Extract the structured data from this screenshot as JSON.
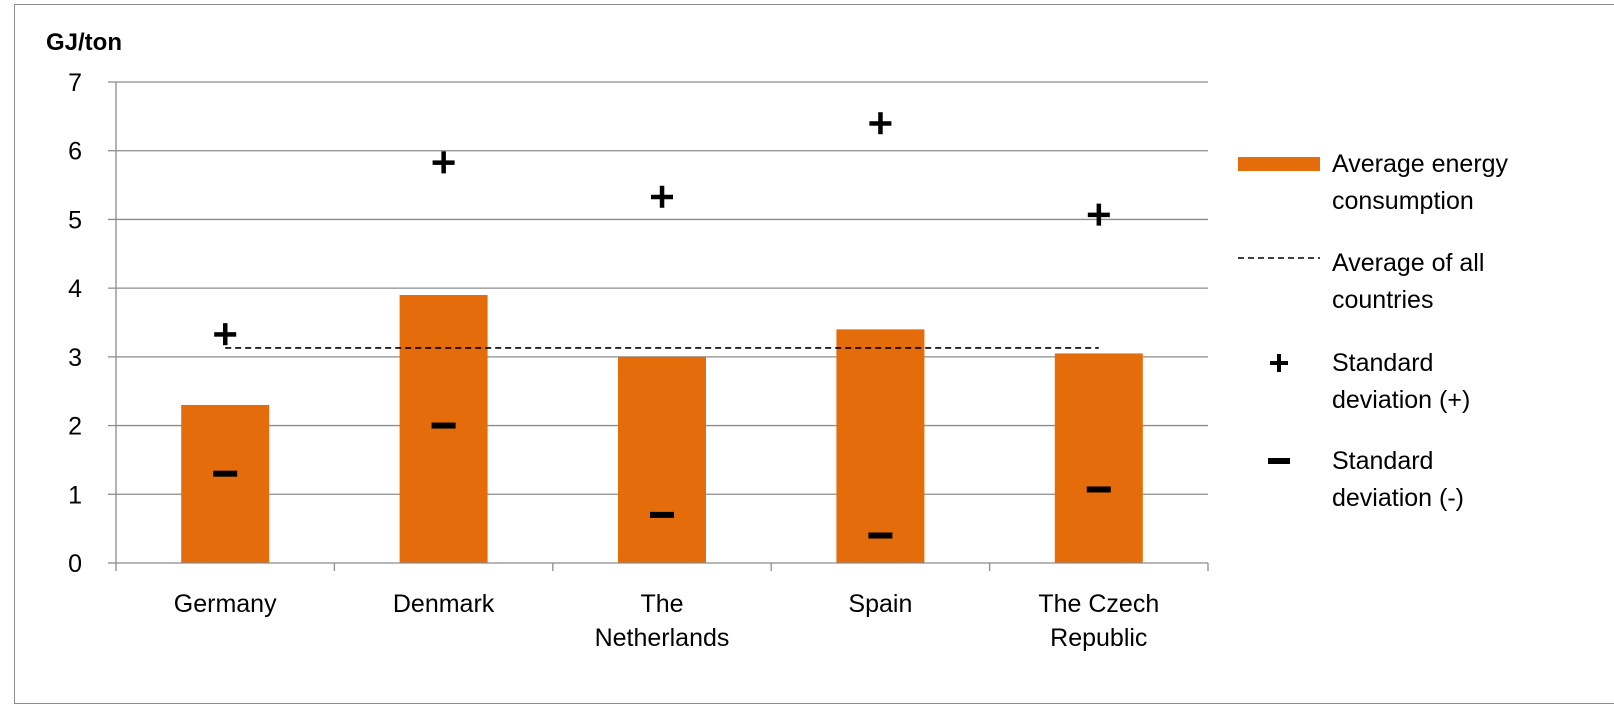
{
  "chart_data": {
    "type": "bar",
    "unit_label": "GJ/ton",
    "categories": [
      [
        "Germany"
      ],
      [
        "Denmark"
      ],
      [
        "The",
        "Netherlands"
      ],
      [
        "Spain"
      ],
      [
        "The Czech",
        "Republic"
      ]
    ],
    "series": [
      {
        "name": [
          "Average energy",
          "consumption"
        ],
        "kind": "bar",
        "color": "#E46C0A",
        "values": [
          2.3,
          3.9,
          3.0,
          3.4,
          3.05
        ]
      },
      {
        "name": [
          "Average of all",
          "countries"
        ],
        "kind": "dashed-line",
        "color": "#000000",
        "values": [
          3.13,
          3.13,
          3.13,
          3.13,
          3.13
        ]
      },
      {
        "name": [
          "Standard",
          "deviation (+)"
        ],
        "kind": "marker",
        "symbol": "+",
        "values": [
          3.33,
          5.83,
          5.33,
          6.4,
          5.07
        ]
      },
      {
        "name": [
          "Standard",
          "deviation (-)"
        ],
        "kind": "marker",
        "symbol": "-",
        "values": [
          1.3,
          2.0,
          0.7,
          0.4,
          1.07
        ]
      }
    ],
    "ylim": [
      0,
      7
    ],
    "yticks": [
      0,
      1,
      2,
      3,
      4,
      5,
      6,
      7
    ],
    "grid": true,
    "legend_position": "right"
  }
}
